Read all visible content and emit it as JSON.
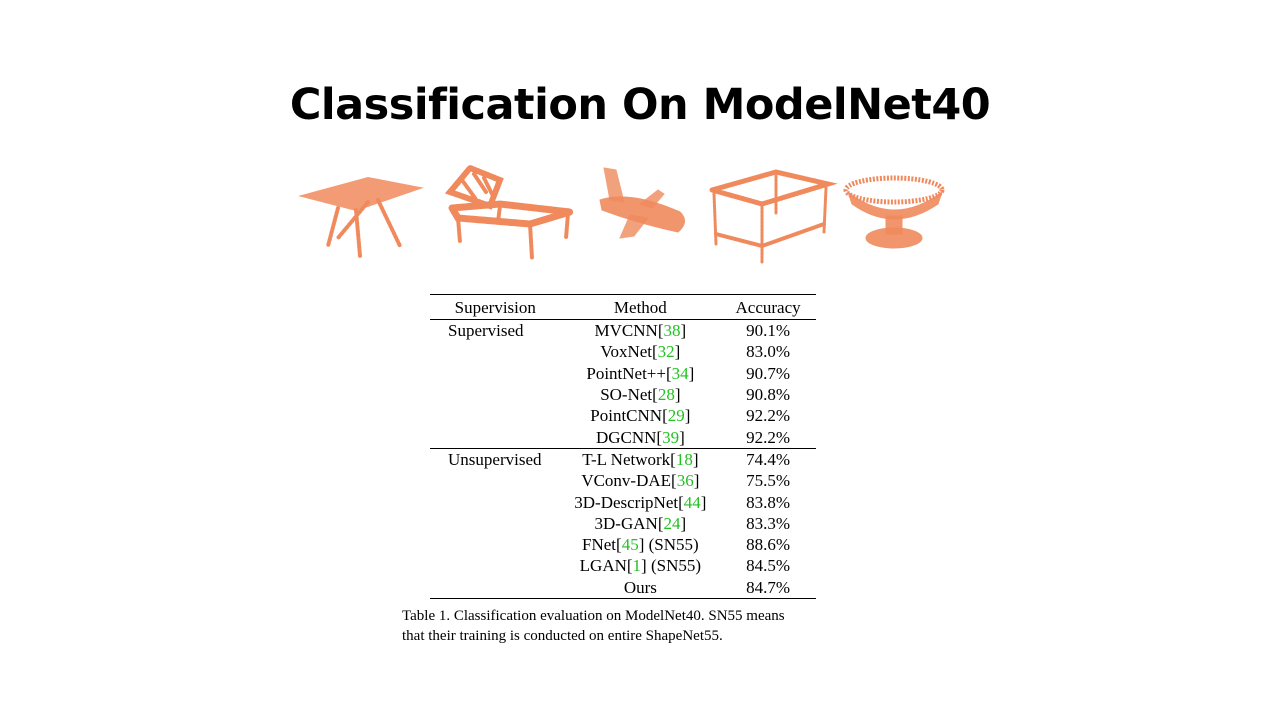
{
  "slide": {
    "title": "Classification On ModelNet40"
  },
  "shapes": [
    {
      "icon": "table-point-cloud-icon",
      "color": "#f08a5d"
    },
    {
      "icon": "chair-point-cloud-icon",
      "color": "#f08a5d"
    },
    {
      "icon": "airplane-point-cloud-icon",
      "color": "#f08a5d"
    },
    {
      "icon": "table-point-cloud-icon",
      "color": "#f08a5d"
    },
    {
      "icon": "bowl-point-cloud-icon",
      "color": "#f08a5d"
    }
  ],
  "table": {
    "headers": {
      "supervision": "Supervision",
      "method": "Method",
      "accuracy": "Accuracy"
    },
    "groups": [
      {
        "label": "Supervised",
        "rows": [
          {
            "name": "MVCNN",
            "ref": "38",
            "suffix": "",
            "acc": "90.1%"
          },
          {
            "name": "VoxNet",
            "ref": "32",
            "suffix": "",
            "acc": "83.0%"
          },
          {
            "name": "PointNet++",
            "ref": "34",
            "suffix": "",
            "acc": "90.7%"
          },
          {
            "name": "SO-Net",
            "ref": "28",
            "suffix": "",
            "acc": "90.8%"
          },
          {
            "name": "PointCNN",
            "ref": "29",
            "suffix": "",
            "acc": "92.2%"
          },
          {
            "name": "DGCNN",
            "ref": "39",
            "suffix": "",
            "acc": "92.2%"
          }
        ]
      },
      {
        "label": "Unsupervised",
        "rows": [
          {
            "name": "T-L Network",
            "ref": "18",
            "suffix": "",
            "acc": "74.4%"
          },
          {
            "name": "VConv-DAE",
            "ref": "36",
            "suffix": "",
            "acc": "75.5%"
          },
          {
            "name": "3D-DescripNet",
            "ref": "44",
            "suffix": "",
            "acc": "83.8%"
          },
          {
            "name": "3D-GAN",
            "ref": "24",
            "suffix": "",
            "acc": "83.3%"
          },
          {
            "name": "FNet",
            "ref": "45",
            "suffix": " (SN55)",
            "acc": "88.6%"
          },
          {
            "name": "LGAN",
            "ref": "1",
            "suffix": " (SN55)",
            "acc": "84.5%"
          },
          {
            "name": "Ours",
            "ref": "",
            "suffix": "",
            "acc": "84.7%"
          }
        ]
      }
    ],
    "ref_color": "#21c221"
  },
  "caption": {
    "line1": "Table 1. Classification evaluation on ModelNet40.  SN55 means",
    "line2": "that their training is conducted on entire ShapeNet55."
  }
}
